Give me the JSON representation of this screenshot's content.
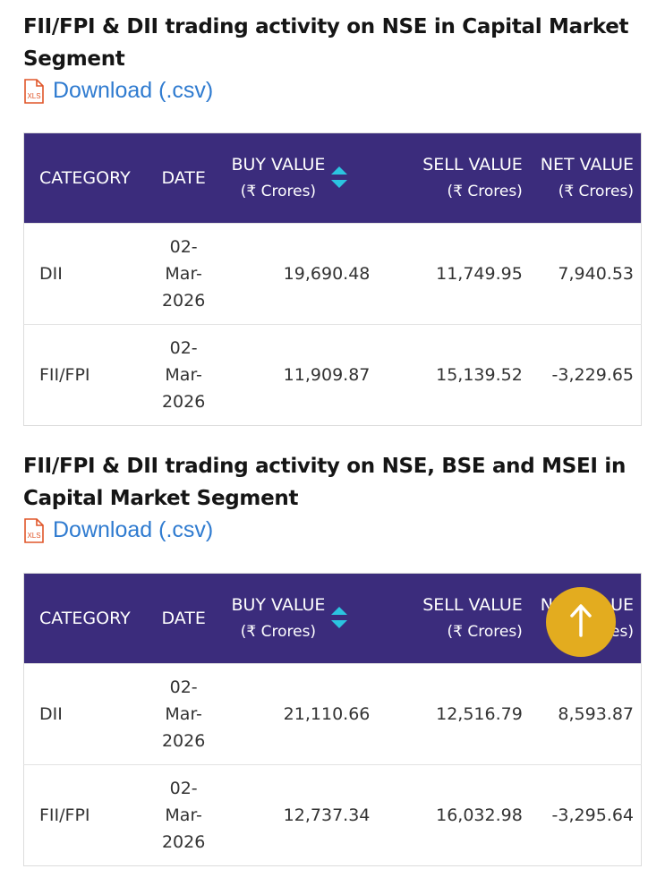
{
  "sections": [
    {
      "title": "FII/FPI & DII trading activity on NSE in Capital Market Segment",
      "download_label": "Download (.csv)",
      "icon_label": "XLS",
      "headers": {
        "category": "CATEGORY",
        "date": "DATE",
        "buy": "BUY VALUE",
        "buy_unit": "(₹ Crores)",
        "sell": "SELL VALUE",
        "sell_unit": "(₹ Crores)",
        "net": "NET VALUE",
        "net_unit": "(₹ Crores)"
      },
      "rows": [
        {
          "category": "DII",
          "date": "02-Mar-2026",
          "buy": "19,690.48",
          "sell": "11,749.95",
          "net": "7,940.53"
        },
        {
          "category": "FII/FPI",
          "date": "02-Mar-2026",
          "buy": "11,909.87",
          "sell": "15,139.52",
          "net": "-3,229.65"
        }
      ]
    },
    {
      "title": "FII/FPI & DII trading activity on NSE, BSE and MSEI in Capital Market Segment",
      "download_label": "Download (.csv)",
      "icon_label": "XLS",
      "headers": {
        "category": "CATEGORY",
        "date": "DATE",
        "buy": "BUY VALUE",
        "buy_unit": "(₹ Crores)",
        "sell": "SELL VALUE",
        "sell_unit": "(₹ Crores)",
        "net": "NET VALUE",
        "net_unit": "(₹ Crores)"
      },
      "rows": [
        {
          "category": "DII",
          "date": "02-Mar-2026",
          "buy": "21,110.66",
          "sell": "12,516.79",
          "net": "8,593.87"
        },
        {
          "category": "FII/FPI",
          "date": "02-Mar-2026",
          "buy": "12,737.34",
          "sell": "16,032.98",
          "net": "-3,295.64"
        }
      ]
    }
  ],
  "scroll_top_icon": "arrow-up-icon",
  "colors": {
    "header_bg": "#3b2c7c",
    "link": "#2f7bd0",
    "sort_arrow": "#2bc4e0",
    "fab": "#e3ac1f"
  }
}
